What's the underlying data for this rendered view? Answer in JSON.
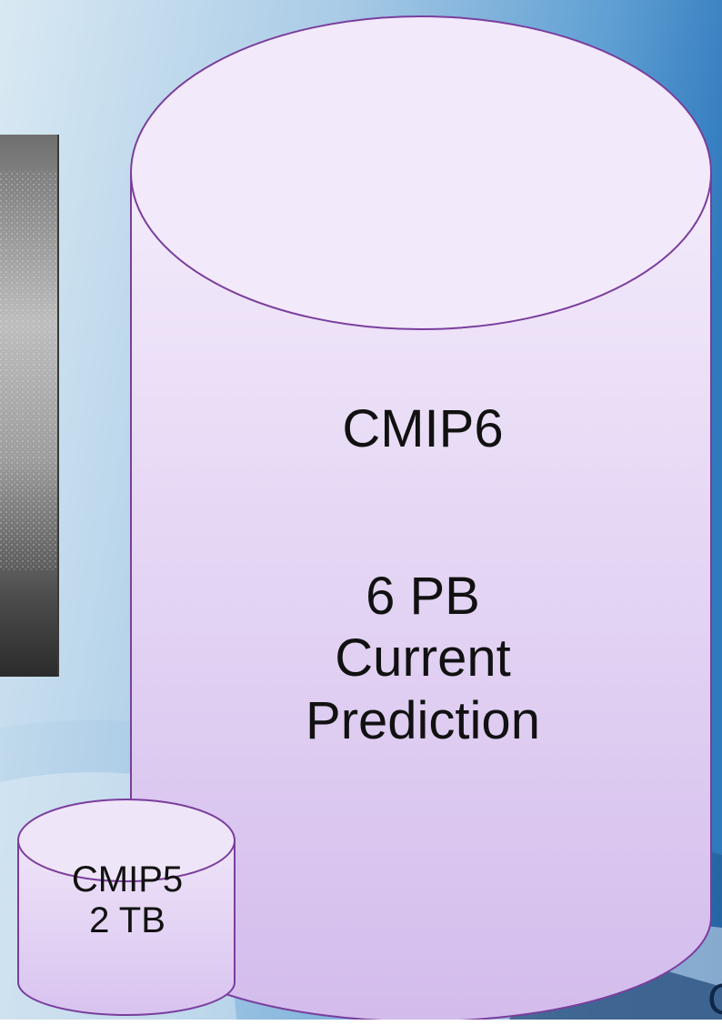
{
  "big_cylinder": {
    "title": "CMIP6",
    "size_line1": "6 PB",
    "size_line2": "Current",
    "size_line3": "Prediction"
  },
  "small_cylinder": {
    "line1": "CMIP5",
    "line2": "2 TB"
  },
  "corner_glyph": "C",
  "colors": {
    "background_light": "#cde2f0",
    "background_mid": "#6fa8d6",
    "background_dark": "#2a6fb3",
    "cylinder_fill_top": "#f3ebfb",
    "cylinder_fill_bottom": "#d6bfee",
    "cylinder_stroke": "#7a3e9d"
  },
  "icons": {
    "background": "world-map-texture",
    "photo": "ocean-splash-photo"
  }
}
